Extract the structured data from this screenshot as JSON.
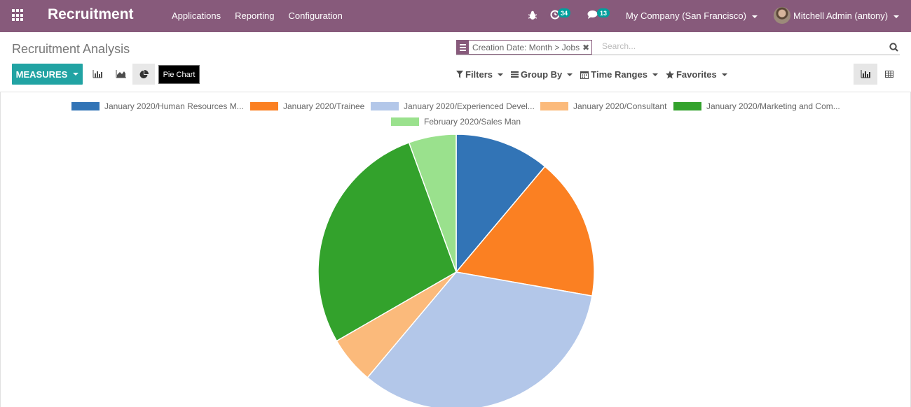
{
  "navbar": {
    "app_title": "Recruitment",
    "menu": [
      "Applications",
      "Reporting",
      "Configuration"
    ],
    "activity_count": "34",
    "message_count": "13",
    "company": "My Company (San Francisco)",
    "user": "Mitchell Admin (antony)"
  },
  "control_panel": {
    "title": "Recruitment Analysis",
    "facet": "Creation Date: Month > Jobs",
    "search_placeholder": "Search...",
    "measures_label": "MEASURES",
    "tooltip": "Pie Chart",
    "filters_label": "Filters",
    "group_by_label": "Group By",
    "time_ranges_label": "Time Ranges",
    "favorites_label": "Favorites"
  },
  "colors": {
    "navbar": "#875a7b",
    "accent": "#21a3a3",
    "badge": "#00a09d"
  },
  "chart_data": {
    "type": "pie",
    "title": "",
    "legend_placement": "top",
    "slices": [
      {
        "label": "January 2020/Human Resources M...",
        "value": 2,
        "color": "#3274b6"
      },
      {
        "label": "January 2020/Trainee",
        "value": 3,
        "color": "#fb8022"
      },
      {
        "label": "January 2020/Experienced Devel...",
        "value": 6,
        "color": "#b3c7e9"
      },
      {
        "label": "January 2020/Consultant",
        "value": 1,
        "color": "#fbba7b"
      },
      {
        "label": "January 2020/Marketing and Com...",
        "value": 5,
        "color": "#33a22c"
      },
      {
        "label": "February 2020/Sales Man",
        "value": 1,
        "color": "#9ae18d"
      }
    ]
  }
}
